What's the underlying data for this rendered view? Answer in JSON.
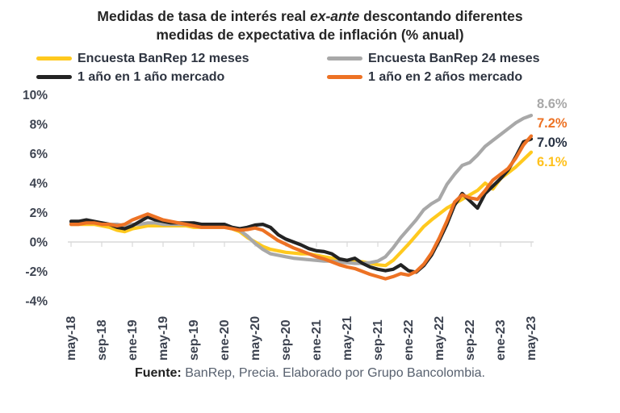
{
  "title": {
    "part1": "Medidas de tasa de interés real",
    "italic": "ex-ante",
    "part2": "descontando diferentes medidas de expectativa de inflación (% anual)"
  },
  "legend": [
    {
      "label": "Encuesta BanRep 12 meses",
      "color": "#FFC91E"
    },
    {
      "label": "Encuesta BanRep 24 meses",
      "color": "#A8A8A8"
    },
    {
      "label": "1 año en 1 año mercado",
      "color": "#232323"
    },
    {
      "label": "1 año en 2 años mercado",
      "color": "#ED7224"
    }
  ],
  "footer": {
    "label": "Fuente:",
    "text": "BanRep, Precia. Elaborado por Grupo Bancolombia."
  },
  "chart_data": {
    "type": "line",
    "title": "Medidas de tasa de interés real ex-ante descontando diferentes medidas de expectativa de inflación (% anual)",
    "ylabel": "",
    "xlabel": "",
    "ylim": [
      -4,
      10
    ],
    "grid": false,
    "legend_position": "top",
    "axis_color": "#D9D9D9",
    "tick_label_color": "#3E4451",
    "y_ticks": [
      10,
      8,
      6,
      4,
      2,
      0,
      -2,
      -4
    ],
    "y_tick_labels": [
      "10%",
      "8%",
      "6%",
      "4%",
      "2%",
      "0%",
      "-2%",
      "-4%"
    ],
    "x_tick_labels": [
      "may-18",
      "sep-18",
      "ene-19",
      "may-19",
      "sep-19",
      "ene-20",
      "may-20",
      "sep-20",
      "ene-21",
      "may-21",
      "sep-21",
      "ene-22",
      "may-22",
      "sep-22",
      "ene-23",
      "may-23"
    ],
    "x": [
      "may-18",
      "jun-18",
      "jul-18",
      "ago-18",
      "sep-18",
      "oct-18",
      "nov-18",
      "dic-18",
      "ene-19",
      "feb-19",
      "mar-19",
      "abr-19",
      "may-19",
      "jun-19",
      "jul-19",
      "ago-19",
      "sep-19",
      "oct-19",
      "nov-19",
      "dic-19",
      "ene-20",
      "feb-20",
      "mar-20",
      "abr-20",
      "may-20",
      "jun-20",
      "jul-20",
      "ago-20",
      "sep-20",
      "oct-20",
      "nov-20",
      "dic-20",
      "ene-21",
      "feb-21",
      "mar-21",
      "abr-21",
      "may-21",
      "jun-21",
      "jul-21",
      "ago-21",
      "sep-21",
      "oct-21",
      "nov-21",
      "dic-21",
      "ene-22",
      "feb-22",
      "mar-22",
      "abr-22",
      "may-22",
      "jun-22",
      "jul-22",
      "ago-22",
      "sep-22",
      "oct-22",
      "nov-22",
      "dic-22",
      "ene-23",
      "feb-23",
      "mar-23",
      "abr-23",
      "may-23"
    ],
    "series": [
      {
        "id": "banrep-12m",
        "name": "Encuesta BanRep 12 meses",
        "color": "#FFC91E",
        "label_color": "#FFC11C",
        "end_label": "6.1%",
        "values": [
          1.2,
          1.2,
          1.2,
          1.2,
          1.1,
          1.0,
          0.8,
          0.7,
          0.9,
          1.0,
          1.1,
          1.1,
          1.1,
          1.1,
          1.1,
          1.1,
          1.0,
          1.0,
          1.0,
          1.0,
          1.0,
          0.9,
          0.7,
          0.3,
          0.0,
          -0.3,
          -0.5,
          -0.6,
          -0.7,
          -0.75,
          -0.8,
          -0.8,
          -0.9,
          -1.0,
          -1.1,
          -1.2,
          -1.25,
          -1.3,
          -1.35,
          -1.45,
          -1.55,
          -1.6,
          -1.25,
          -0.7,
          -0.15,
          0.45,
          1.05,
          1.5,
          1.9,
          2.3,
          2.6,
          2.9,
          3.2,
          3.5,
          4.0,
          3.6,
          4.3,
          4.7,
          5.1,
          5.6,
          6.1
        ]
      },
      {
        "id": "banrep-24m",
        "name": "Encuesta BanRep 24 meses",
        "color": "#A8A8A8",
        "label_color": "#A8A8A8",
        "end_label": "8.6%",
        "values": [
          1.3,
          1.3,
          1.3,
          1.3,
          1.3,
          1.2,
          1.2,
          1.1,
          1.2,
          1.2,
          1.3,
          1.3,
          1.2,
          1.2,
          1.2,
          1.2,
          1.2,
          1.1,
          1.1,
          1.1,
          1.1,
          1.0,
          0.8,
          0.4,
          -0.1,
          -0.5,
          -0.8,
          -0.9,
          -1.0,
          -1.1,
          -1.15,
          -1.2,
          -1.25,
          -1.3,
          -1.3,
          -1.35,
          -1.4,
          -1.45,
          -1.45,
          -1.4,
          -1.3,
          -1.0,
          -0.4,
          0.3,
          0.9,
          1.5,
          2.2,
          2.6,
          2.9,
          3.9,
          4.6,
          5.2,
          5.4,
          5.9,
          6.5,
          6.9,
          7.3,
          7.7,
          8.1,
          8.4,
          8.6
        ]
      },
      {
        "id": "1a-en-1a-mercado",
        "name": "1 año en 1 año mercado",
        "color": "#232323",
        "label_color": "#273142",
        "end_label": "7.0%",
        "values": [
          1.4,
          1.4,
          1.5,
          1.4,
          1.3,
          1.2,
          1.0,
          0.9,
          1.1,
          1.4,
          1.7,
          1.5,
          1.4,
          1.3,
          1.3,
          1.3,
          1.3,
          1.2,
          1.2,
          1.2,
          1.2,
          1.0,
          0.9,
          1.0,
          1.15,
          1.2,
          1.0,
          0.5,
          0.2,
          0.0,
          -0.2,
          -0.45,
          -0.6,
          -0.65,
          -0.8,
          -1.15,
          -1.25,
          -1.1,
          -1.45,
          -1.7,
          -1.85,
          -1.95,
          -1.85,
          -1.55,
          -1.95,
          -2.05,
          -1.6,
          -0.9,
          0.1,
          1.2,
          2.5,
          3.3,
          2.8,
          2.3,
          3.3,
          3.8,
          4.3,
          4.9,
          5.8,
          6.8,
          7.0
        ]
      },
      {
        "id": "1a-en-2a-mercado",
        "name": "1 año en 2 años mercado",
        "color": "#ED7224",
        "label_color": "#ED7224",
        "end_label": "7.2%",
        "values": [
          1.2,
          1.2,
          1.3,
          1.3,
          1.2,
          1.2,
          1.1,
          1.2,
          1.5,
          1.7,
          1.9,
          1.7,
          1.5,
          1.4,
          1.3,
          1.2,
          1.1,
          1.0,
          1.0,
          1.0,
          1.0,
          0.9,
          0.8,
          0.85,
          0.95,
          0.8,
          0.45,
          0.1,
          -0.15,
          -0.4,
          -0.6,
          -0.8,
          -1.0,
          -1.15,
          -1.35,
          -1.55,
          -1.7,
          -1.8,
          -2.0,
          -2.2,
          -2.35,
          -2.5,
          -2.35,
          -2.15,
          -2.25,
          -2.0,
          -1.5,
          -0.75,
          0.25,
          1.4,
          2.7,
          3.2,
          3.0,
          2.9,
          3.5,
          4.2,
          4.6,
          5.0,
          5.7,
          6.6,
          7.2
        ]
      }
    ]
  }
}
